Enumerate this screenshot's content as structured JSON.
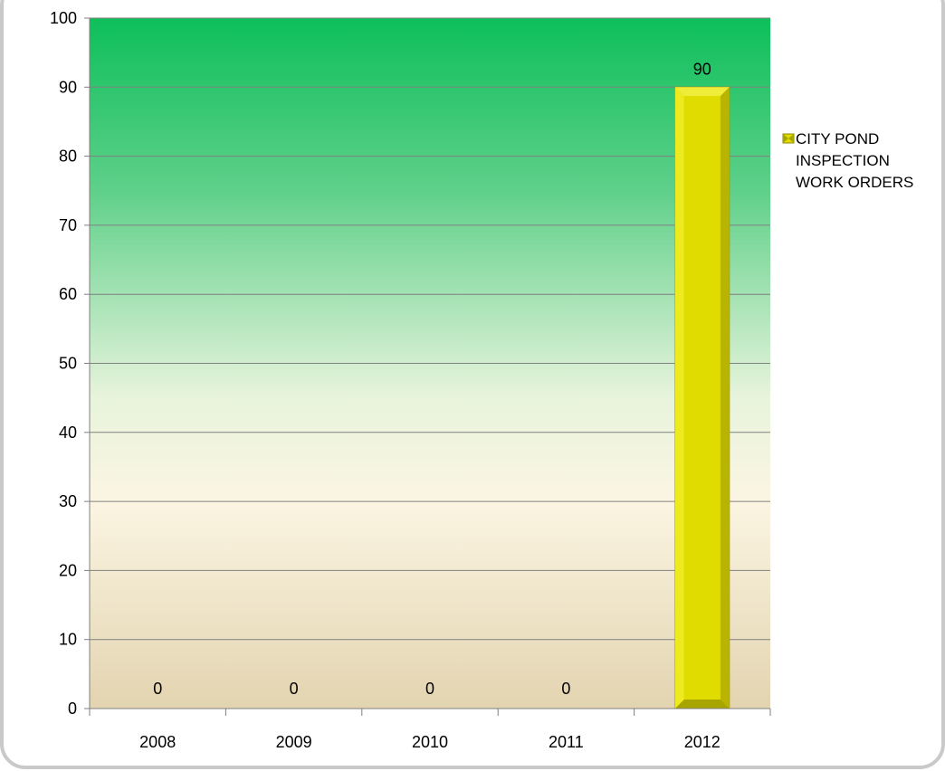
{
  "chart_data": {
    "type": "bar",
    "categories": [
      "2008",
      "2009",
      "2010",
      "2011",
      "2012"
    ],
    "series": [
      {
        "name": "CITY POND INSPECTION WORK ORDERS",
        "values": [
          0,
          0,
          0,
          0,
          90
        ],
        "color": "#e0dc00"
      }
    ],
    "data_labels": [
      "0",
      "0",
      "0",
      "0",
      "90"
    ],
    "ylim": [
      0,
      100
    ],
    "yticks": [
      0,
      10,
      20,
      30,
      40,
      50,
      60,
      70,
      80,
      90,
      100
    ],
    "grid": true,
    "legend_position": "right",
    "legend_lines": [
      "CITY POND",
      "INSPECTION",
      "WORK ORDERS"
    ],
    "background_gradient": [
      "#0dbf5a",
      "#5fd08a",
      "#e8f4dc",
      "#fbf5e2",
      "#e3d4b0"
    ]
  }
}
